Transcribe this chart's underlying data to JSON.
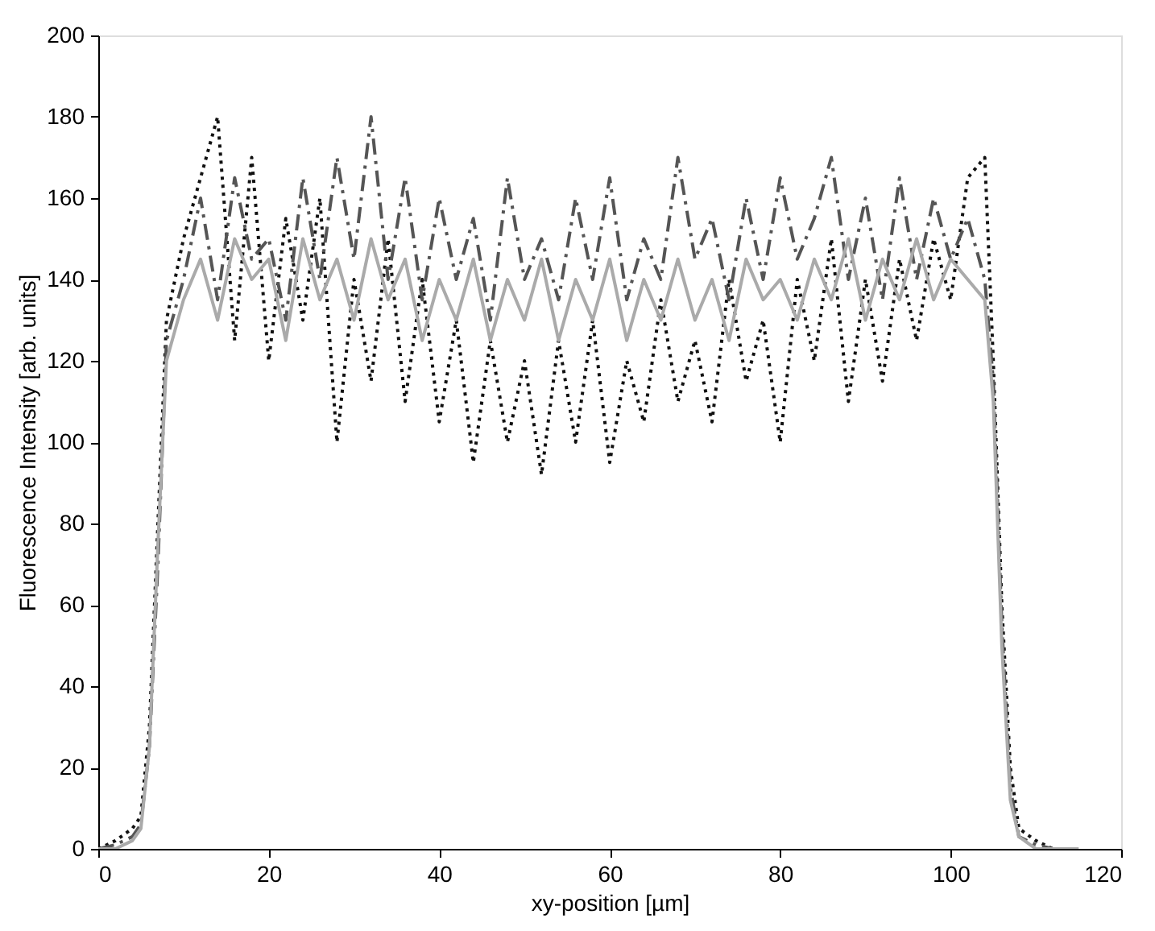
{
  "chart_data": {
    "type": "line",
    "xlabel": "xy-position [µm]",
    "ylabel": "Fluorescence Intensity [arb. units]",
    "xlim": [
      0,
      120
    ],
    "ylim": [
      0,
      200
    ],
    "xticks": [
      0,
      20,
      40,
      60,
      80,
      100,
      120
    ],
    "yticks": [
      0,
      20,
      40,
      60,
      80,
      100,
      120,
      140,
      160,
      180,
      200
    ],
    "grid": false,
    "legend": false,
    "marker": "none",
    "x": [
      0,
      2,
      4,
      5,
      6,
      7,
      8,
      10,
      12,
      14,
      16,
      18,
      20,
      22,
      24,
      26,
      28,
      30,
      32,
      34,
      36,
      38,
      40,
      42,
      44,
      46,
      48,
      50,
      52,
      54,
      56,
      58,
      60,
      62,
      64,
      66,
      68,
      70,
      72,
      74,
      76,
      78,
      80,
      82,
      84,
      86,
      88,
      90,
      92,
      94,
      96,
      98,
      100,
      102,
      104,
      105,
      106,
      107,
      108,
      110,
      112,
      115
    ],
    "series": [
      {
        "color": "#111111",
        "line_style": "dotted",
        "values": [
          0,
          2,
          5,
          8,
          30,
          80,
          130,
          150,
          165,
          180,
          125,
          170,
          120,
          155,
          130,
          160,
          100,
          140,
          115,
          150,
          110,
          140,
          105,
          130,
          95,
          125,
          100,
          120,
          92,
          125,
          100,
          130,
          95,
          120,
          105,
          135,
          110,
          125,
          105,
          140,
          115,
          130,
          100,
          140,
          120,
          150,
          110,
          140,
          115,
          145,
          125,
          150,
          135,
          165,
          170,
          120,
          60,
          20,
          5,
          2,
          0,
          0
        ]
      },
      {
        "color": "#555555",
        "line_style": "dashed",
        "values": [
          0,
          1,
          3,
          6,
          25,
          70,
          125,
          140,
          160,
          135,
          165,
          145,
          150,
          130,
          165,
          140,
          170,
          145,
          180,
          140,
          165,
          135,
          160,
          140,
          155,
          130,
          165,
          140,
          150,
          135,
          160,
          140,
          165,
          135,
          150,
          140,
          170,
          145,
          155,
          135,
          160,
          140,
          165,
          145,
          155,
          170,
          140,
          160,
          135,
          165,
          140,
          160,
          145,
          155,
          140,
          115,
          55,
          15,
          3,
          1,
          0,
          0
        ]
      },
      {
        "color": "#aaaaaa",
        "line_style": "solid",
        "values": [
          0,
          0,
          2,
          5,
          25,
          75,
          120,
          135,
          145,
          130,
          150,
          140,
          145,
          125,
          150,
          135,
          145,
          130,
          150,
          135,
          145,
          125,
          140,
          130,
          145,
          125,
          140,
          130,
          145,
          125,
          140,
          130,
          145,
          125,
          140,
          130,
          145,
          130,
          140,
          125,
          145,
          135,
          140,
          130,
          145,
          135,
          150,
          130,
          145,
          135,
          150,
          135,
          145,
          140,
          135,
          110,
          50,
          12,
          3,
          0,
          0,
          0
        ]
      }
    ]
  }
}
